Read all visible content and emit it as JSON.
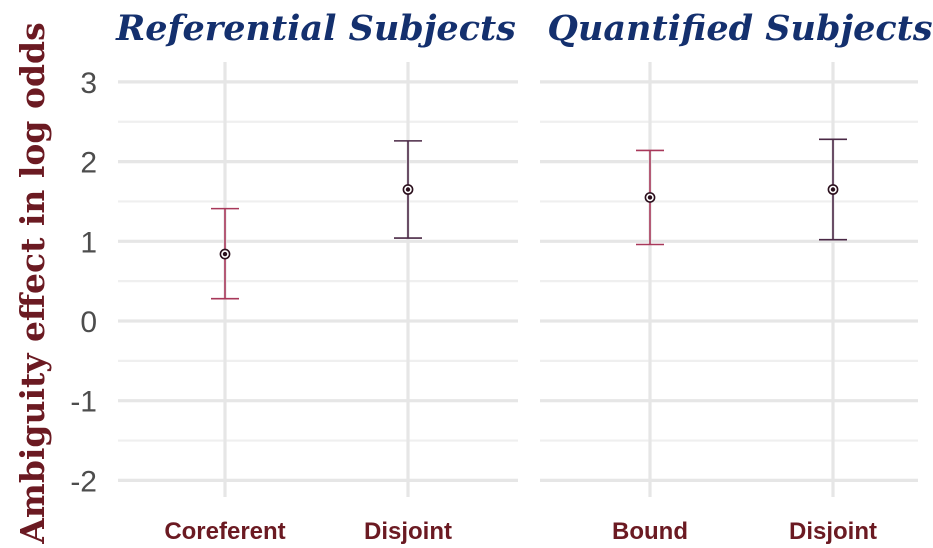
{
  "chart_data": {
    "type": "errorbar",
    "ylabel": "Ambiguity effect in log odds",
    "ylim": [
      -2.4,
      3.2
    ],
    "yticks": [
      "3",
      "2",
      "1",
      "0",
      "-1",
      "-2"
    ],
    "ytick_values": [
      3,
      2,
      1,
      0,
      -1,
      -2
    ],
    "grid": true,
    "panels": [
      {
        "title": "Referential Subjects",
        "categories": [
          "Coreferent",
          "Disjoint"
        ],
        "values": [
          0.84,
          1.65
        ],
        "lower": [
          0.28,
          1.04
        ],
        "upper": [
          1.41,
          2.26
        ],
        "colors": [
          "#a8385a",
          "#4a2845"
        ]
      },
      {
        "title": "Quantified Subjects",
        "categories": [
          "Bound",
          "Disjoint"
        ],
        "values": [
          1.55,
          1.65
        ],
        "lower": [
          0.96,
          1.02
        ],
        "upper": [
          2.14,
          2.28
        ],
        "colors": [
          "#a8385a",
          "#4a2845"
        ]
      }
    ]
  }
}
